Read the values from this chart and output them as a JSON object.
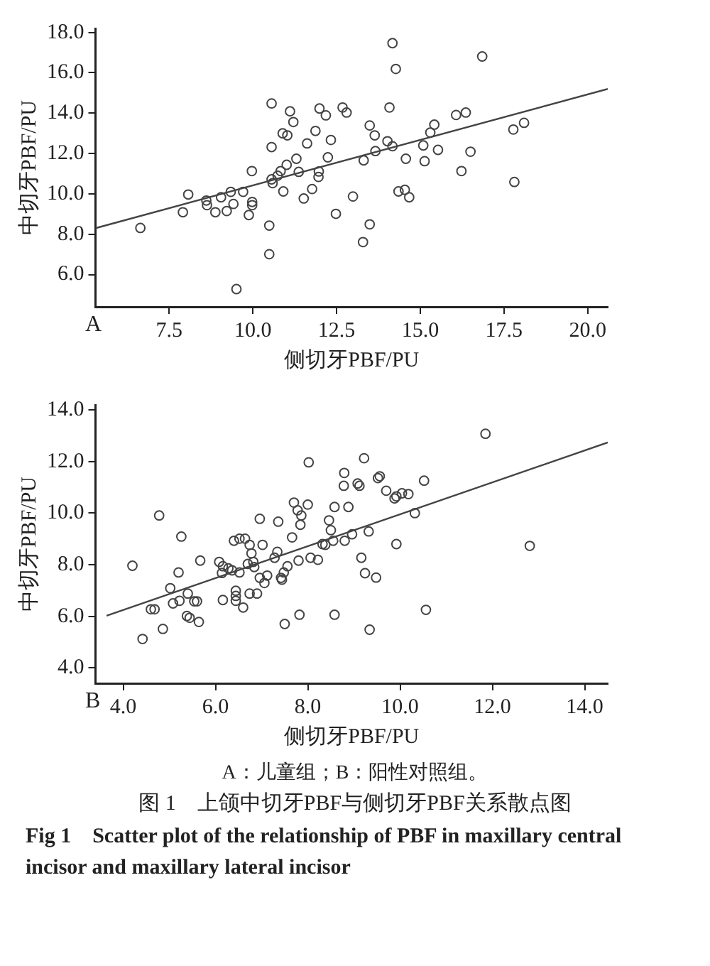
{
  "chart_data": [
    {
      "type": "scatter",
      "xlabel": "侧切牙PBF/PU",
      "ylabel": "中切牙PBF/PU",
      "annotations": [
        "A"
      ],
      "grid": false,
      "legend": false,
      "xlim": [
        5.3,
        20.6
      ],
      "ylim": [
        4.4,
        18.2
      ],
      "xticks": [
        7.5,
        {
          "value": 10,
          "label": "10.0"
        },
        12.5,
        {
          "value": 15,
          "label": "15.0"
        },
        17.5,
        {
          "value": 20,
          "label": "20.0"
        }
      ],
      "yticks": [
        {
          "value": 6,
          "label": "6.0"
        },
        {
          "value": 8,
          "label": "8.0"
        },
        {
          "value": 10,
          "label": "10.0"
        },
        {
          "value": 12,
          "label": "12.0"
        },
        {
          "value": 14,
          "label": "14.0"
        },
        {
          "value": 16,
          "label": "16.0"
        },
        {
          "value": 18,
          "label": "18.0"
        }
      ],
      "series": [
        {
          "marker": "circle",
          "color": "#444444",
          "x": [
            6.64,
            7.91,
            8.07,
            8.61,
            8.63,
            8.88,
            9.05,
            9.22,
            9.34,
            9.42,
            9.51,
            9.71,
            9.88,
            9.97,
            9.98,
            9.98,
            10.49,
            10.49,
            10.56,
            10.56,
            10.56,
            10.59,
            10.74,
            10.83,
            10.89,
            10.91,
            11.01,
            11.03,
            11.11,
            11.21,
            11.3,
            11.37,
            11.52,
            11.62,
            11.77,
            11.87,
            11.97,
            11.99,
            11.96,
            12.18,
            12.24,
            12.33,
            12.48,
            12.68,
            12.8,
            12.99,
            13.29,
            13.31,
            13.49,
            13.49,
            13.64,
            13.66,
            14.02,
            14.08,
            14.17,
            14.27,
            14.17,
            14.35,
            14.54,
            14.57,
            14.67,
            15.09,
            15.13,
            15.3,
            15.42,
            15.53,
            16.07,
            16.23,
            16.36,
            16.5,
            16.85,
            17.78,
            17.81,
            18.1
          ],
          "values": [
            8.31,
            9.09,
            9.97,
            9.67,
            9.44,
            9.09,
            9.83,
            9.15,
            10.1,
            9.5,
            5.28,
            10.1,
            8.95,
            11.13,
            9.6,
            9.44,
            8.43,
            7.01,
            14.48,
            12.32,
            10.72,
            10.53,
            10.9,
            11.13,
            13.0,
            10.12,
            11.44,
            12.9,
            14.09,
            13.56,
            11.74,
            11.09,
            9.77,
            12.5,
            10.24,
            13.12,
            11.11,
            14.23,
            10.84,
            13.89,
            11.81,
            12.67,
            9.01,
            14.28,
            14.03,
            9.87,
            7.61,
            11.66,
            13.39,
            8.49,
            12.9,
            12.12,
            12.61,
            14.28,
            17.47,
            16.19,
            12.36,
            10.12,
            10.2,
            11.74,
            9.83,
            12.4,
            11.62,
            13.04,
            13.43,
            12.18,
            13.91,
            11.13,
            14.03,
            12.09,
            16.81,
            13.19,
            10.59,
            13.52
          ]
        },
        {
          "type": "line",
          "marker": "none",
          "color": "#444444",
          "x": [
            5.3,
            20.6
          ],
          "values": [
            8.3,
            15.2
          ]
        }
      ]
    },
    {
      "type": "scatter",
      "xlabel": "侧切牙PBF/PU",
      "ylabel": "中切牙PBF/PU",
      "annotations": [
        "B",
        "A：儿童组；B：阳性对照组。",
        "图 1　上颌中切牙PBF与侧切牙PBF关系散点图",
        "Fig 1　Scatter plot of the relationship of PBF in maxillary central incisor and maxillary lateral incisor"
      ],
      "grid": false,
      "legend": false,
      "xlim": [
        3.4,
        14.5
      ],
      "ylim": [
        3.4,
        14.2
      ],
      "xticks": [
        {
          "value": 4,
          "label": "4.0"
        },
        {
          "value": 6,
          "label": "6.0"
        },
        {
          "value": 8,
          "label": "8.0"
        },
        {
          "value": 10,
          "label": "10.0"
        },
        {
          "value": 12,
          "label": "12.0"
        },
        {
          "value": 14,
          "label": "14.0"
        }
      ],
      "yticks": [
        {
          "value": 4,
          "label": "4.0"
        },
        {
          "value": 6,
          "label": "6.0"
        },
        {
          "value": 8,
          "label": "8.0"
        },
        {
          "value": 10,
          "label": "10.0"
        },
        {
          "value": 12,
          "label": "12.0"
        },
        {
          "value": 14,
          "label": "14.0"
        }
      ],
      "series": [
        {
          "marker": "circle",
          "color": "#444444",
          "x": [
            4.2,
            4.42,
            4.6,
            4.68,
            4.78,
            4.86,
            5.02,
            5.08,
            5.2,
            5.22,
            5.26,
            5.38,
            5.4,
            5.44,
            5.54,
            5.6,
            5.64,
            5.67,
            6.08,
            6.14,
            6.16,
            6.16,
            6.28,
            6.36,
            6.4,
            6.44,
            6.44,
            6.44,
            6.52,
            6.52,
            6.6,
            6.64,
            6.7,
            6.74,
            6.74,
            6.78,
            6.82,
            6.84,
            6.9,
            6.96,
            6.96,
            7.02,
            7.06,
            7.12,
            7.28,
            7.34,
            7.36,
            7.42,
            7.44,
            7.48,
            7.5,
            7.56,
            7.66,
            7.7,
            7.78,
            7.8,
            7.82,
            7.84,
            7.86,
            8.0,
            8.02,
            8.06,
            8.22,
            8.32,
            8.38,
            8.46,
            8.5,
            8.55,
            8.58,
            8.58,
            8.79,
            8.78,
            8.8,
            8.88,
            8.96,
            9.08,
            9.12,
            9.16,
            9.22,
            9.24,
            9.32,
            9.34,
            9.48,
            9.52,
            9.56,
            9.7,
            9.88,
            9.92,
            9.92,
            10.04,
            10.18,
            10.32,
            10.52,
            10.56,
            11.85,
            12.81
          ],
          "values": [
            7.96,
            5.12,
            6.27,
            6.27,
            9.91,
            5.51,
            7.09,
            6.5,
            7.7,
            6.6,
            9.09,
            6.01,
            6.88,
            5.94,
            6.58,
            6.58,
            5.78,
            8.16,
            8.11,
            7.68,
            6.63,
            7.94,
            7.86,
            7.78,
            8.93,
            6.79,
            6.99,
            6.6,
            9.01,
            7.7,
            6.34,
            9.01,
            8.03,
            8.77,
            6.88,
            8.44,
            8.11,
            7.91,
            6.88,
            9.78,
            7.49,
            8.77,
            7.29,
            7.58,
            8.27,
            8.5,
            9.67,
            7.49,
            7.42,
            7.7,
            5.7,
            7.94,
            9.06,
            10.41,
            10.11,
            8.16,
            6.06,
            9.55,
            9.91,
            10.33,
            11.97,
            8.27,
            8.19,
            8.8,
            8.77,
            9.72,
            9.34,
            8.93,
            10.24,
            6.06,
            11.56,
            11.06,
            8.93,
            10.24,
            9.18,
            11.15,
            11.06,
            8.27,
            12.13,
            7.67,
            9.29,
            5.48,
            7.5,
            11.36,
            11.43,
            10.87,
            10.57,
            8.8,
            10.65,
            10.77,
            10.74,
            10.0,
            11.26,
            6.25,
            13.08,
            8.73
          ]
        },
        {
          "type": "line",
          "marker": "none",
          "color": "#444444",
          "x": [
            3.64,
            14.5
          ],
          "values": [
            6.02,
            12.74
          ]
        }
      ]
    }
  ]
}
